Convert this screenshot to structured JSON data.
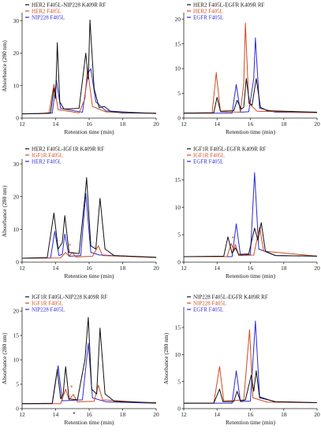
{
  "colors": {
    "black": "#111111",
    "red": "#d04a1e",
    "blue": "#2a2ad8",
    "axis": "#222222",
    "pink": "#f0bcbc"
  },
  "chart_data": [
    {
      "type": "line",
      "xlabel": "Retention time (min)",
      "ylabel": "Absorbance (280 nm)",
      "xlim": [
        12,
        20
      ],
      "ylim": [
        0,
        32
      ],
      "xticks": [
        12,
        14,
        16,
        18,
        20
      ],
      "yticks": [
        0,
        10,
        20,
        30
      ],
      "legend_position": "top-left",
      "series": [
        {
          "name": "HER2 F405L-NIP228 K409R RF",
          "color": "#111111",
          "points": [
            [
              12,
              1.3
            ],
            [
              13,
              1.4
            ],
            [
              13.7,
              1.6
            ],
            [
              13.9,
              9.2
            ],
            [
              14,
              6
            ],
            [
              14.1,
              23.2
            ],
            [
              14.25,
              5
            ],
            [
              14.5,
              2.8
            ],
            [
              15.4,
              3
            ],
            [
              15.8,
              20
            ],
            [
              15.95,
              12
            ],
            [
              16.05,
              30.2
            ],
            [
              16.3,
              9
            ],
            [
              16.6,
              3.2
            ],
            [
              16.9,
              3.6
            ],
            [
              17.3,
              2
            ],
            [
              18,
              1.6
            ],
            [
              20,
              1.5
            ]
          ]
        },
        {
          "name": "HER2 F405L",
          "color": "#d04a1e",
          "points": [
            [
              12,
              1.3
            ],
            [
              13.6,
              1.4
            ],
            [
              13.9,
              10.4
            ],
            [
              14.15,
              2.6
            ],
            [
              15.4,
              1.6
            ],
            [
              15.75,
              6
            ],
            [
              15.9,
              15.2
            ],
            [
              16.2,
              3.6
            ],
            [
              17,
              1.9
            ],
            [
              20,
              1.4
            ]
          ]
        },
        {
          "name": "NIP228 F405L",
          "color": "#2a2ad8",
          "points": [
            [
              12,
              1.3
            ],
            [
              13.8,
              1.5
            ],
            [
              14.05,
              11.6
            ],
            [
              14.3,
              3
            ],
            [
              15.6,
              1.8
            ],
            [
              15.95,
              14
            ],
            [
              16.1,
              15.2
            ],
            [
              16.4,
              5
            ],
            [
              17,
              2.2
            ],
            [
              20,
              1.4
            ]
          ]
        }
      ]
    },
    {
      "type": "line",
      "xlabel": "Retention time (min)",
      "ylabel": "",
      "xlim": [
        12,
        20
      ],
      "ylim": [
        0,
        21
      ],
      "xticks": [
        12,
        14,
        16,
        18,
        20
      ],
      "yticks": [
        0,
        5,
        10,
        15,
        20
      ],
      "legend_position": "top-left",
      "series": [
        {
          "name": "HER2 F405L-EGFR K409R RF",
          "color": "#111111",
          "points": [
            [
              12,
              1
            ],
            [
              13.8,
              1.1
            ],
            [
              14,
              4.2
            ],
            [
              14.2,
              1.4
            ],
            [
              15,
              1.5
            ],
            [
              15.2,
              3.6
            ],
            [
              15.45,
              1.8
            ],
            [
              15.6,
              2.2
            ],
            [
              15.75,
              8
            ],
            [
              15.95,
              3
            ],
            [
              16.1,
              2.6
            ],
            [
              16.35,
              8
            ],
            [
              16.6,
              2.2
            ],
            [
              17,
              1.5
            ],
            [
              20,
              1.2
            ]
          ]
        },
        {
          "name": "HER2 F405L",
          "color": "#d04a1e",
          "points": [
            [
              12,
              1
            ],
            [
              13.7,
              1
            ],
            [
              13.95,
              9.2
            ],
            [
              14.2,
              1.3
            ],
            [
              15.4,
              1.2
            ],
            [
              15.6,
              7
            ],
            [
              15.7,
              19.2
            ],
            [
              15.9,
              3
            ],
            [
              16.4,
              1.4
            ],
            [
              20,
              1.1
            ]
          ]
        },
        {
          "name": "EGFR F405L",
          "color": "#2a2ad8",
          "points": [
            [
              12,
              1
            ],
            [
              14.9,
              1
            ],
            [
              15.15,
              6.8
            ],
            [
              15.4,
              1.2
            ],
            [
              15.9,
              1.3
            ],
            [
              16.2,
              8
            ],
            [
              16.3,
              16.2
            ],
            [
              16.55,
              2
            ],
            [
              17.5,
              1.2
            ],
            [
              20,
              1.1
            ]
          ]
        }
      ]
    },
    {
      "type": "line",
      "xlabel": "Retention time (min)",
      "ylabel": "Absorbance (280 nm)",
      "xlim": [
        12,
        20
      ],
      "ylim": [
        0,
        31
      ],
      "xticks": [
        12,
        14,
        16,
        18,
        20
      ],
      "yticks": [
        0,
        10,
        20,
        30
      ],
      "legend_position": "top-left",
      "series": [
        {
          "name": "HER2 F405L-IGF1R K409R RF",
          "color": "#111111",
          "points": [
            [
              12,
              1.2
            ],
            [
              13.5,
              1.4
            ],
            [
              13.9,
              15
            ],
            [
              14.15,
              4
            ],
            [
              14.4,
              6
            ],
            [
              14.55,
              14.2
            ],
            [
              14.8,
              3
            ],
            [
              15.4,
              2.6
            ],
            [
              15.75,
              20
            ],
            [
              15.85,
              25.8
            ],
            [
              16.1,
              5
            ],
            [
              16.4,
              4
            ],
            [
              16.65,
              19.5
            ],
            [
              16.95,
              4
            ],
            [
              17.5,
              2
            ],
            [
              20,
              1.5
            ]
          ]
        },
        {
          "name": "IGF1R F405L",
          "color": "#d04a1e",
          "points": [
            [
              12,
              1.2
            ],
            [
              14.3,
              1.3
            ],
            [
              14.6,
              3
            ],
            [
              14.8,
              1.8
            ],
            [
              15,
              3
            ],
            [
              15.2,
              1.6
            ],
            [
              16.2,
              1.8
            ],
            [
              16.55,
              5
            ],
            [
              16.8,
              2
            ],
            [
              20,
              1.4
            ]
          ]
        },
        {
          "name": "HER2 F405L",
          "color": "#2a2ad8",
          "points": [
            [
              12,
              1.2
            ],
            [
              13.7,
              1.3
            ],
            [
              13.95,
              9.4
            ],
            [
              14.2,
              2
            ],
            [
              14.4,
              2.4
            ],
            [
              14.55,
              8.6
            ],
            [
              14.8,
              1.8
            ],
            [
              15.5,
              2
            ],
            [
              15.8,
              21
            ],
            [
              16.1,
              3
            ],
            [
              16.6,
              2.2
            ],
            [
              20,
              1.4
            ]
          ]
        }
      ],
      "annotations": [
        {
          "text": "*",
          "x": 14.85,
          "y": 4.2,
          "color": "#d04a1e"
        }
      ]
    },
    {
      "type": "line",
      "xlabel": "Retention time (min)",
      "ylabel": "",
      "xlim": [
        12,
        20
      ],
      "ylim": [
        0,
        18.5
      ],
      "xticks": [
        12,
        14,
        16,
        18,
        20
      ],
      "yticks": [
        0,
        5,
        10,
        15
      ],
      "legend_position": "top-left",
      "series": [
        {
          "name": "IGF1R F405L-EGFR K409R RF",
          "color": "#111111",
          "points": [
            [
              12,
              1
            ],
            [
              14.4,
              1.1
            ],
            [
              14.65,
              4.6
            ],
            [
              14.9,
              1.6
            ],
            [
              15.1,
              2.6
            ],
            [
              15.3,
              1.4
            ],
            [
              15.9,
              1.5
            ],
            [
              16.25,
              6.2
            ],
            [
              16.45,
              4
            ],
            [
              16.65,
              7.2
            ],
            [
              16.9,
              2
            ],
            [
              17.5,
              1.2
            ],
            [
              20,
              1.1
            ]
          ]
        },
        {
          "name": "IGF1R F405L",
          "color": "#d04a1e",
          "points": [
            [
              12,
              1
            ],
            [
              14.6,
              1
            ],
            [
              14.85,
              3.4
            ],
            [
              15,
              2.2
            ],
            [
              15.1,
              3.2
            ],
            [
              15.3,
              1.2
            ],
            [
              16.2,
              1.3
            ],
            [
              16.55,
              6.4
            ],
            [
              16.8,
              2
            ],
            [
              20,
              1.1
            ]
          ]
        },
        {
          "name": "EGFR F405L",
          "color": "#2a2ad8",
          "points": [
            [
              12,
              1
            ],
            [
              14.9,
              1
            ],
            [
              15.15,
              7
            ],
            [
              15.4,
              1.3
            ],
            [
              16,
              1.4
            ],
            [
              16.25,
              16.3
            ],
            [
              16.5,
              2.4
            ],
            [
              17.5,
              1.2
            ],
            [
              20,
              1.1
            ]
          ]
        }
      ],
      "annotations": [
        {
          "text": "*",
          "x": 14.95,
          "y": 3.9,
          "color": "#d04a1e"
        }
      ]
    },
    {
      "type": "line",
      "xlabel": "Retention time (min)",
      "ylabel": "Absorbance (280 nm)",
      "xlim": [
        12,
        20
      ],
      "ylim": [
        0,
        20.5
      ],
      "xticks": [
        12,
        14,
        16,
        18,
        20
      ],
      "yticks": [
        0,
        5,
        10,
        15,
        20
      ],
      "legend_position": "top-left",
      "series": [
        {
          "name": "IGF1R F405L-NIP228 K409R RF",
          "color": "#111111",
          "points": [
            [
              12,
              1
            ],
            [
              13.8,
              1.1
            ],
            [
              14.1,
              8
            ],
            [
              14.3,
              2
            ],
            [
              14.45,
              3
            ],
            [
              14.6,
              8.6
            ],
            [
              14.8,
              2
            ],
            [
              15.3,
              1.8
            ],
            [
              15.75,
              10
            ],
            [
              15.95,
              18.7
            ],
            [
              16.15,
              4
            ],
            [
              16.45,
              3
            ],
            [
              16.65,
              16.5
            ],
            [
              16.95,
              3
            ],
            [
              17.5,
              1.5
            ],
            [
              20,
              1.2
            ]
          ]
        },
        {
          "name": "IGF1R F405L",
          "color": "#d04a1e",
          "points": [
            [
              12,
              1
            ],
            [
              14.3,
              1
            ],
            [
              14.6,
              4
            ],
            [
              14.8,
              1.8
            ],
            [
              15.05,
              2.9
            ],
            [
              15.3,
              1.4
            ],
            [
              16.3,
              1.5
            ],
            [
              16.55,
              4.8
            ],
            [
              16.8,
              1.8
            ],
            [
              20,
              1.1
            ]
          ]
        },
        {
          "name": "NIP228 F405L",
          "color": "#2a2ad8",
          "points": [
            [
              12,
              1
            ],
            [
              13.8,
              1
            ],
            [
              14.15,
              8.8
            ],
            [
              14.4,
              1.6
            ],
            [
              15.6,
              1.8
            ],
            [
              15.95,
              13.4
            ],
            [
              16.2,
              2.2
            ],
            [
              17,
              1.4
            ],
            [
              20,
              1.1
            ]
          ]
        }
      ],
      "annotations": [
        {
          "text": "*",
          "x": 14.95,
          "y": 3.8,
          "color": "#d04a1e"
        },
        {
          "text": "*",
          "x": 15.1,
          "y": -1.6,
          "color": "#111111"
        }
      ]
    },
    {
      "type": "line",
      "xlabel": "Retention time (min)",
      "ylabel": "Absorbance (280 nm)",
      "xlim": [
        12,
        20
      ],
      "ylim": [
        0,
        18.5
      ],
      "xticks": [
        12,
        14,
        16,
        18,
        20
      ],
      "yticks": [
        0,
        5,
        10,
        15
      ],
      "legend_position": "top-left",
      "series": [
        {
          "name": "NIP228 F405L-EGFR K409R RF",
          "color": "#111111",
          "points": [
            [
              12,
              1
            ],
            [
              13.8,
              1
            ],
            [
              14.15,
              3.6
            ],
            [
              14.35,
              1.3
            ],
            [
              15,
              1.3
            ],
            [
              15.2,
              3.2
            ],
            [
              15.4,
              1.4
            ],
            [
              15.7,
              1.6
            ],
            [
              16.05,
              6.2
            ],
            [
              16.2,
              3.2
            ],
            [
              16.35,
              7
            ],
            [
              16.55,
              2
            ],
            [
              17.5,
              1.3
            ],
            [
              20,
              1.1
            ]
          ]
        },
        {
          "name": "NIP228 F405L",
          "color": "#d04a1e",
          "points": [
            [
              12,
              1
            ],
            [
              13.8,
              1
            ],
            [
              14.15,
              7.8
            ],
            [
              14.4,
              1.4
            ],
            [
              15.6,
              1.6
            ],
            [
              15.95,
              14.6
            ],
            [
              16.15,
              2
            ],
            [
              17,
              1.2
            ],
            [
              20,
              1.1
            ]
          ]
        },
        {
          "name": "EGFR F405L",
          "color": "#2a2ad8",
          "points": [
            [
              12,
              1
            ],
            [
              14.9,
              1
            ],
            [
              15.15,
              7
            ],
            [
              15.4,
              1.3
            ],
            [
              16,
              1.4
            ],
            [
              16.3,
              16.2
            ],
            [
              16.55,
              2.2
            ],
            [
              17.5,
              1.2
            ],
            [
              20,
              1.1
            ]
          ]
        }
      ]
    }
  ]
}
